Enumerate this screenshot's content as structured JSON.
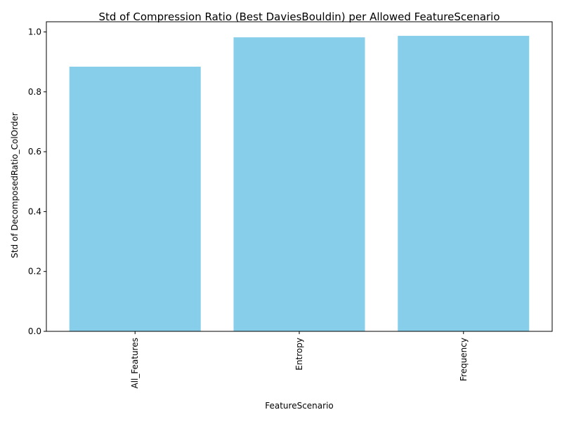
{
  "chart_data": {
    "type": "bar",
    "title": "Std of Compression Ratio (Best DaviesBouldin) per Allowed FeatureScenario",
    "xlabel": "FeatureScenario",
    "ylabel": "Std of DecomposedRatio_ColOrder",
    "categories": [
      "All_Features",
      "Entropy",
      "Frequency"
    ],
    "values": [
      0.884,
      0.982,
      0.987
    ],
    "ylim": [
      0,
      1.034
    ],
    "yticks": [
      0.0,
      0.2,
      0.4,
      0.6,
      0.8,
      1.0
    ],
    "ytick_labels": [
      "0.0",
      "0.2",
      "0.4",
      "0.6",
      "0.8",
      "1.0"
    ],
    "bar_color": "#87ceeb",
    "grid": false,
    "legend": "none"
  }
}
